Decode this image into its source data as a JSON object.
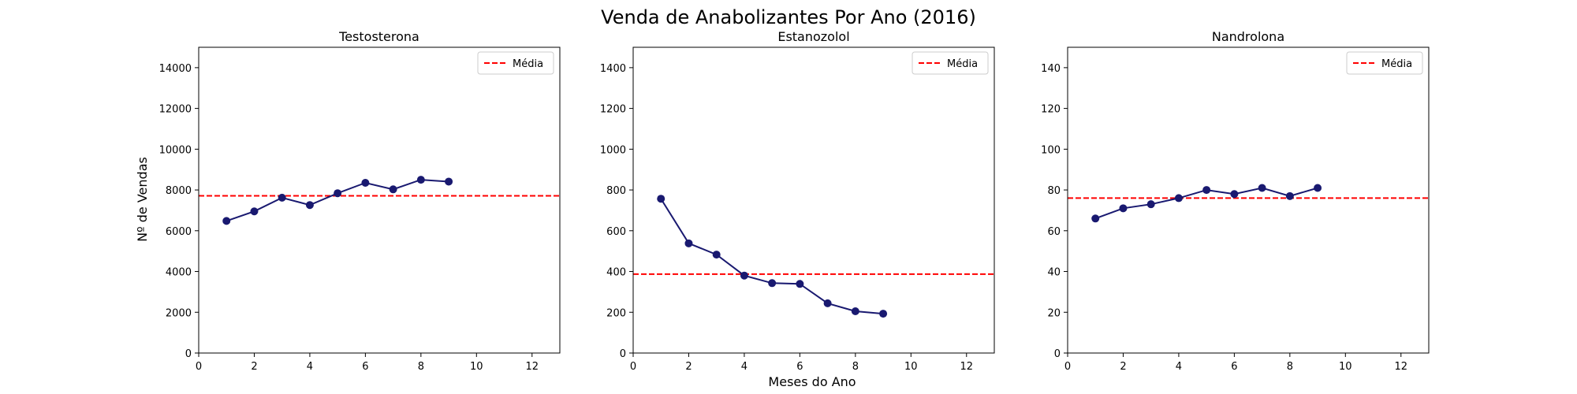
{
  "figure": {
    "suptitle": "Venda de Anabolizantes Por Ano (2016)",
    "xlabel": "Meses do Ano",
    "ylabel": "Nº de Vendas"
  },
  "colors": {
    "line": "#191970",
    "mean": "#ff0000"
  },
  "chart_data": [
    {
      "type": "line",
      "title": "Testosterona",
      "x": [
        1,
        2,
        3,
        4,
        5,
        6,
        7,
        8,
        9
      ],
      "y": [
        6480,
        6950,
        7620,
        7260,
        7840,
        8350,
        8030,
        8500,
        8410
      ],
      "mean": 7715,
      "legend": [
        "Média"
      ],
      "legend_position": "top-right",
      "xlim": [
        0,
        13
      ],
      "ylim": [
        0,
        15000
      ],
      "xticks": [
        0,
        2,
        4,
        6,
        8,
        10,
        12
      ],
      "yticks": [
        0,
        2000,
        4000,
        6000,
        8000,
        10000,
        12000,
        14000
      ],
      "grid": false
    },
    {
      "type": "line",
      "title": "Estanozolol",
      "x": [
        1,
        2,
        3,
        4,
        5,
        6,
        7,
        8,
        9
      ],
      "y": [
        757,
        538,
        483,
        380,
        343,
        339,
        244,
        205,
        193
      ],
      "mean": 387,
      "legend": [
        "Média"
      ],
      "legend_position": "top-right",
      "xlim": [
        0,
        13
      ],
      "ylim": [
        0,
        1500
      ],
      "xticks": [
        0,
        2,
        4,
        6,
        8,
        10,
        12
      ],
      "yticks": [
        0,
        200,
        400,
        600,
        800,
        1000,
        1200,
        1400
      ],
      "grid": false
    },
    {
      "type": "line",
      "title": "Nandrolona",
      "x": [
        1,
        2,
        3,
        4,
        5,
        6,
        7,
        8,
        9
      ],
      "y": [
        66,
        71,
        73,
        76,
        80,
        78,
        81,
        77,
        81
      ],
      "mean": 76,
      "legend": [
        "Média"
      ],
      "legend_position": "top-right",
      "xlim": [
        0,
        13
      ],
      "ylim": [
        0,
        150
      ],
      "xticks": [
        0,
        2,
        4,
        6,
        8,
        10,
        12
      ],
      "yticks": [
        0,
        20,
        40,
        60,
        80,
        100,
        120,
        140
      ],
      "grid": false
    }
  ]
}
